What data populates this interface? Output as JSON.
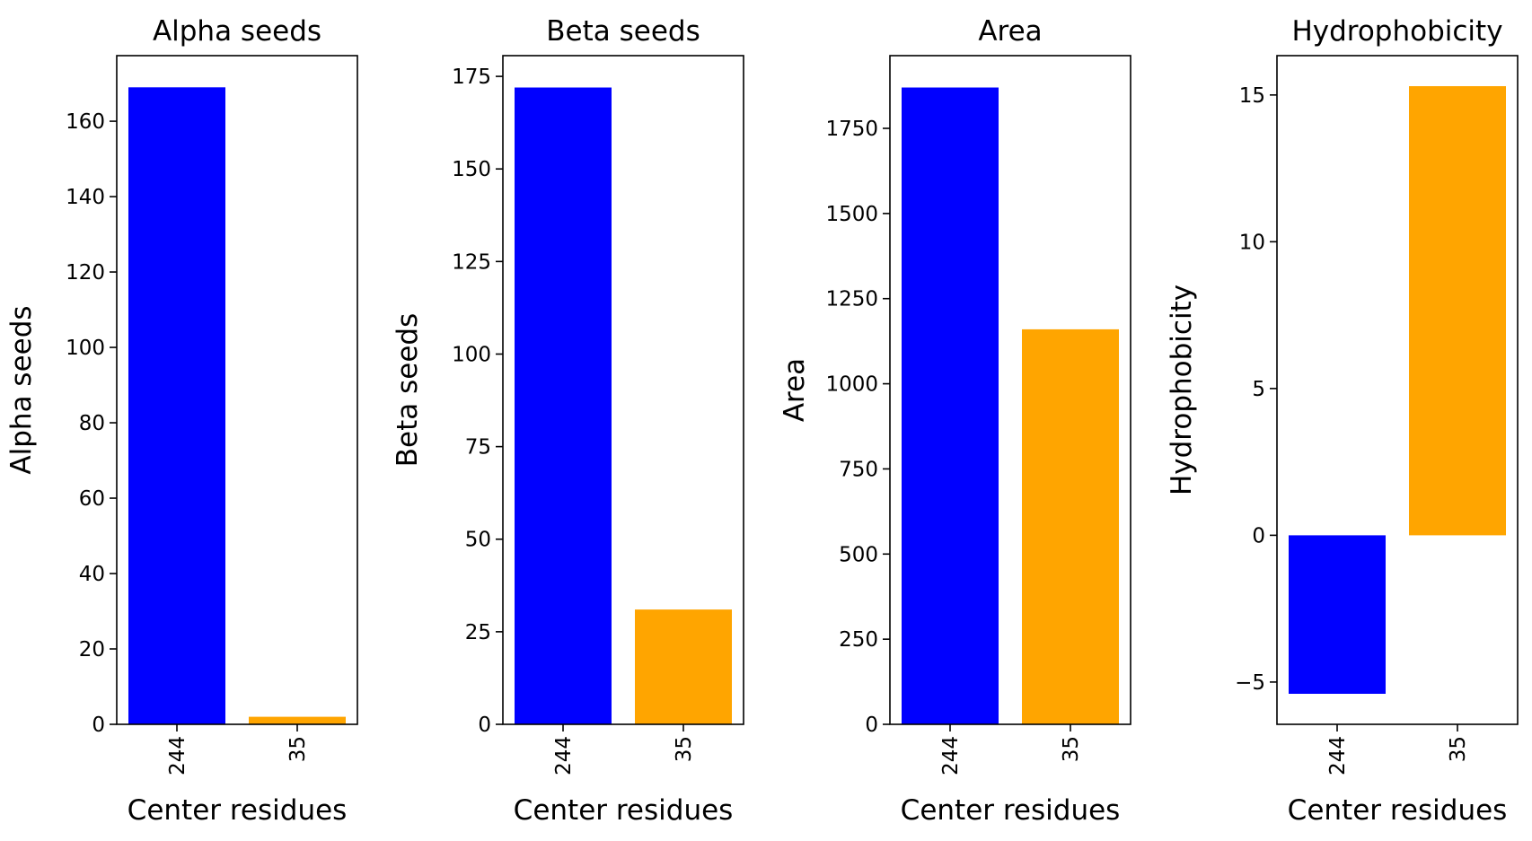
{
  "chart_data": [
    {
      "type": "bar",
      "title": "Alpha seeds",
      "xlabel": "Center residues",
      "ylabel": "Alpha seeds",
      "categories": [
        "244",
        "35"
      ],
      "values": [
        169,
        2
      ],
      "colors": [
        "#0000ff",
        "#ffa500"
      ],
      "ylim": [
        0,
        177.4
      ],
      "yticks": [
        0,
        20,
        40,
        60,
        80,
        100,
        120,
        140,
        160
      ]
    },
    {
      "type": "bar",
      "title": "Beta seeds",
      "xlabel": "Center residues",
      "ylabel": "Beta seeds",
      "categories": [
        "244",
        "35"
      ],
      "values": [
        172,
        31
      ],
      "colors": [
        "#0000ff",
        "#ffa500"
      ],
      "ylim": [
        0,
        180.6
      ],
      "yticks": [
        0,
        25,
        50,
        75,
        100,
        125,
        150,
        175
      ]
    },
    {
      "type": "bar",
      "title": "Area",
      "xlabel": "Center residues",
      "ylabel": "Area",
      "categories": [
        "244",
        "35"
      ],
      "values": [
        1870,
        1160
      ],
      "colors": [
        "#0000ff",
        "#ffa500"
      ],
      "ylim": [
        0,
        1963.5
      ],
      "yticks": [
        0,
        250,
        500,
        750,
        1000,
        1250,
        1500,
        1750
      ]
    },
    {
      "type": "bar",
      "title": "Hydrophobicity",
      "xlabel": "Center residues",
      "ylabel": "Hydrophobicity",
      "categories": [
        "244",
        "35"
      ],
      "values": [
        -5.4,
        15.3
      ],
      "colors": [
        "#0000ff",
        "#ffa500"
      ],
      "ylim": [
        -6.44,
        16.34
      ],
      "yticks": [
        -5,
        0,
        5,
        10,
        15
      ]
    }
  ]
}
